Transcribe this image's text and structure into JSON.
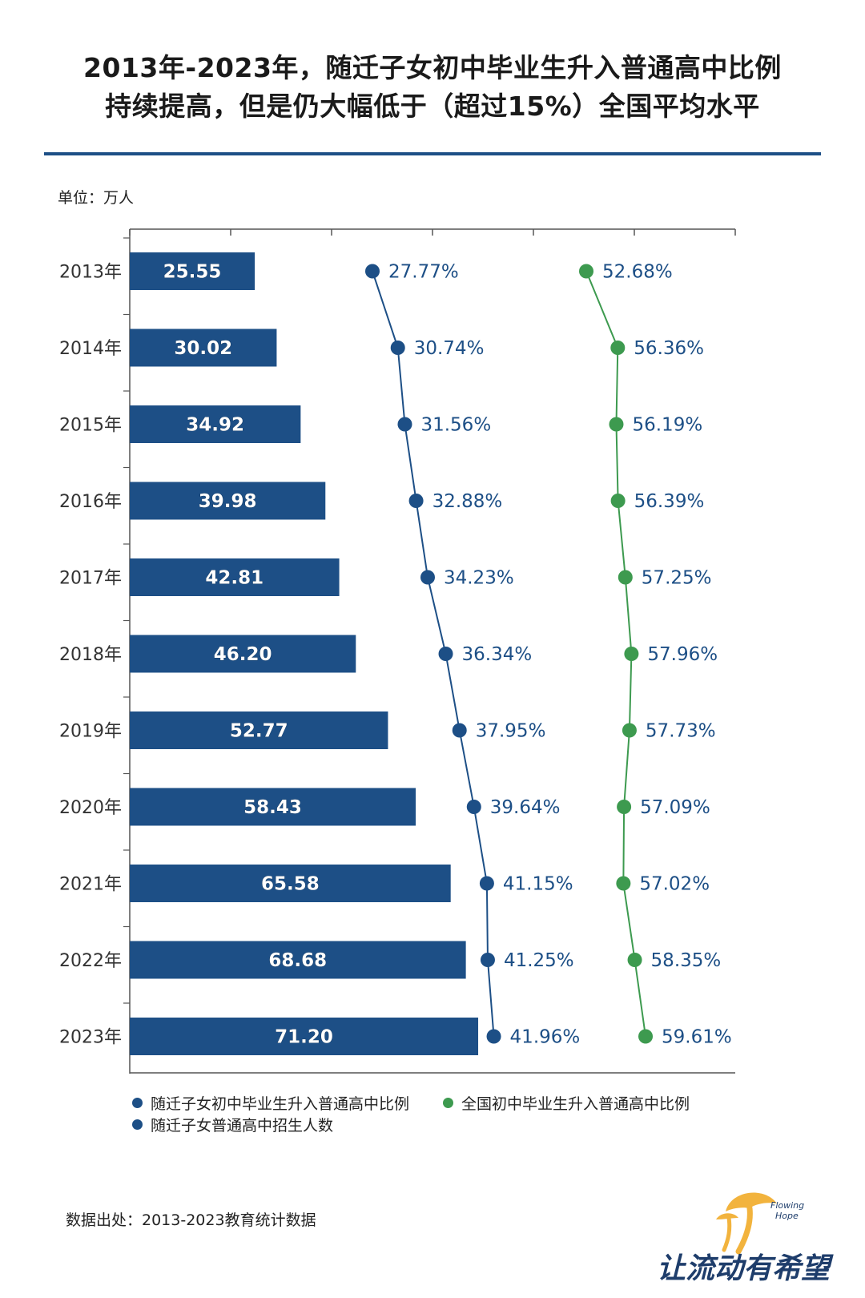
{
  "title": {
    "line1": "2013年-2023年，随迁子女初中毕业生升入普通高中比例",
    "line2": "持续提高，但是仍大幅低于（超过15%）全国平均水平"
  },
  "unit_label": "单位：万人",
  "source": "数据出处：2013-2023教育统计数据",
  "logo": {
    "text": "让流动有希望",
    "en_line1": "Flowing",
    "en_line2": "Hope"
  },
  "colors": {
    "navy": "#1d4f86",
    "green": "#3d9a4f",
    "axis": "#555555",
    "label_blue": "#1d4f86"
  },
  "chart_data": {
    "type": "bar+line",
    "orientation": "horizontal",
    "categories": [
      "2013年",
      "2014年",
      "2015年",
      "2016年",
      "2017年",
      "2018年",
      "2019年",
      "2020年",
      "2021年",
      "2022年",
      "2023年"
    ],
    "series": [
      {
        "name": "随迁子女普通高中招生人数",
        "type": "bar",
        "unit": "万人",
        "values": [
          25.55,
          30.02,
          34.92,
          39.98,
          42.81,
          46.2,
          52.77,
          58.43,
          65.58,
          68.68,
          71.2
        ],
        "labels": [
          "25.55",
          "30.02",
          "34.92",
          "39.98",
          "42.81",
          "46.20",
          "52.77",
          "58.43",
          "65.58",
          "68.68",
          "71.20"
        ],
        "color": "#1d4f86"
      },
      {
        "name": "随迁子女初中毕业生升入普通高中比例",
        "type": "line",
        "unit": "%",
        "values": [
          27.77,
          30.74,
          31.56,
          32.88,
          34.23,
          36.34,
          37.95,
          39.64,
          41.15,
          41.25,
          41.96
        ],
        "labels": [
          "27.77%",
          "30.74%",
          "31.56%",
          "32.88%",
          "34.23%",
          "36.34%",
          "37.95%",
          "39.64%",
          "41.15%",
          "41.25%",
          "41.96%"
        ],
        "color": "#1d4f86"
      },
      {
        "name": "全国初中毕业生升入普通高中比例",
        "type": "line",
        "unit": "%",
        "values": [
          52.68,
          56.36,
          56.19,
          56.39,
          57.25,
          57.96,
          57.73,
          57.09,
          57.02,
          58.35,
          59.61
        ],
        "labels": [
          "52.68%",
          "56.36%",
          "56.19%",
          "56.39%",
          "57.25%",
          "57.96%",
          "57.73%",
          "57.09%",
          "57.02%",
          "58.35%",
          "59.61%"
        ],
        "color": "#3d9a4f"
      }
    ],
    "legend": {
      "position": "bottom",
      "items": [
        {
          "label": "随迁子女初中毕业生升入普通高中比例",
          "color": "#1d4f86"
        },
        {
          "label": "全国初中毕业生升入普通高中比例",
          "color": "#3d9a4f"
        },
        {
          "label": "随迁子女普通高中招生人数",
          "color": "#1d4f86"
        }
      ]
    }
  }
}
